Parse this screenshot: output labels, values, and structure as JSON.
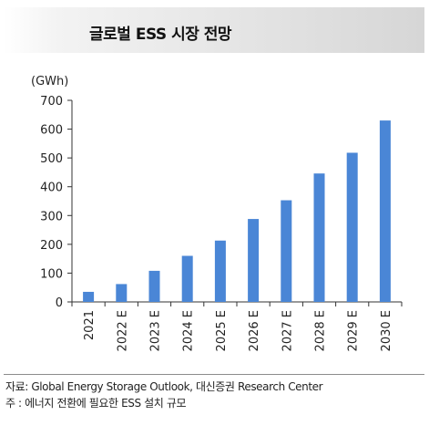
{
  "header": {
    "title": "글로벌 ESS 시장 전망"
  },
  "chart_data": {
    "type": "bar",
    "unit_label": "(GWh)",
    "categories": [
      "2021",
      "2022 E",
      "2023 E",
      "2024 E",
      "2025 E",
      "2026 E",
      "2027 E",
      "2028 E",
      "2029 E",
      "2030 E"
    ],
    "values": [
      35,
      62,
      108,
      160,
      213,
      288,
      353,
      446,
      518,
      630
    ],
    "ylim": [
      0,
      700
    ],
    "yticks": [
      0,
      100,
      200,
      300,
      400,
      500,
      600,
      700
    ],
    "grid": false,
    "bar_color": "#4a86d6"
  },
  "footer": {
    "source": "자료: Global Energy Storage Outlook, 대신증권 Research Center",
    "note": "주 : 에너지 전환에 필요한 ESS 설치 규모"
  }
}
